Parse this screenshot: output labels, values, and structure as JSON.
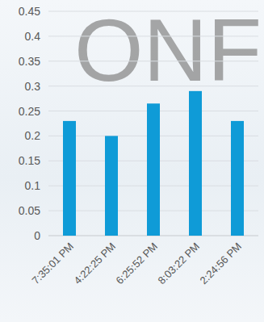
{
  "chart_data": {
    "type": "bar",
    "annotations": [
      "ONF"
    ],
    "categories": [
      "7:35:01 PM",
      "4:22:25 PM",
      "6:25:52 PM",
      "8:03:22 PM",
      "2:24:56 PM"
    ],
    "values": [
      0.23,
      0.2,
      0.265,
      0.29,
      0.23
    ],
    "color": "#0f9bd7",
    "ylim": [
      0,
      0.45
    ],
    "yticks": [
      0,
      0.05,
      0.1,
      0.15,
      0.2,
      0.25,
      0.3,
      0.35,
      0.4,
      0.45
    ],
    "grid": true
  }
}
